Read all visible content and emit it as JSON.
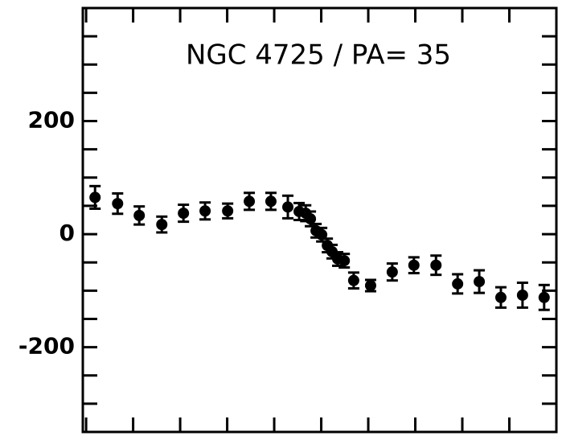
{
  "chart_data": {
    "type": "scatter",
    "title": "NGC 4725 / PA= 35",
    "x": [
      0.19,
      0.67,
      1.13,
      1.61,
      2.07,
      2.53,
      3.01,
      3.47,
      3.93,
      4.29,
      4.53,
      4.67,
      4.77,
      4.89,
      5.01,
      5.13,
      5.23,
      5.35,
      5.49,
      5.69,
      6.05,
      6.51,
      6.97,
      7.44,
      7.9,
      8.36,
      8.82,
      9.28,
      9.74
    ],
    "values": [
      65,
      54,
      33,
      17,
      37,
      41,
      41,
      58,
      58,
      48,
      40,
      37,
      27,
      6,
      -1,
      -20,
      -31,
      -44,
      -47,
      -82,
      -91,
      -67,
      -55,
      -55,
      -88,
      -84,
      -112,
      -108,
      -112
    ],
    "errors": [
      20,
      18,
      16,
      14,
      15,
      15,
      13,
      15,
      15,
      20,
      15,
      14,
      13,
      12,
      12,
      12,
      12,
      12,
      12,
      14,
      10,
      15,
      14,
      17,
      17,
      20,
      18,
      22,
      22
    ],
    "color": "#000000",
    "xlim": [
      -0.07,
      10
    ],
    "xticks": [
      0,
      1,
      2,
      3,
      4,
      5,
      6,
      7,
      8,
      9
    ],
    "ylim": [
      -350,
      400
    ],
    "yticks": [
      -200,
      0,
      200
    ],
    "yminorticks": [
      -300,
      -250,
      -150,
      -100,
      -50,
      50,
      100,
      150,
      250,
      300,
      350
    ]
  }
}
